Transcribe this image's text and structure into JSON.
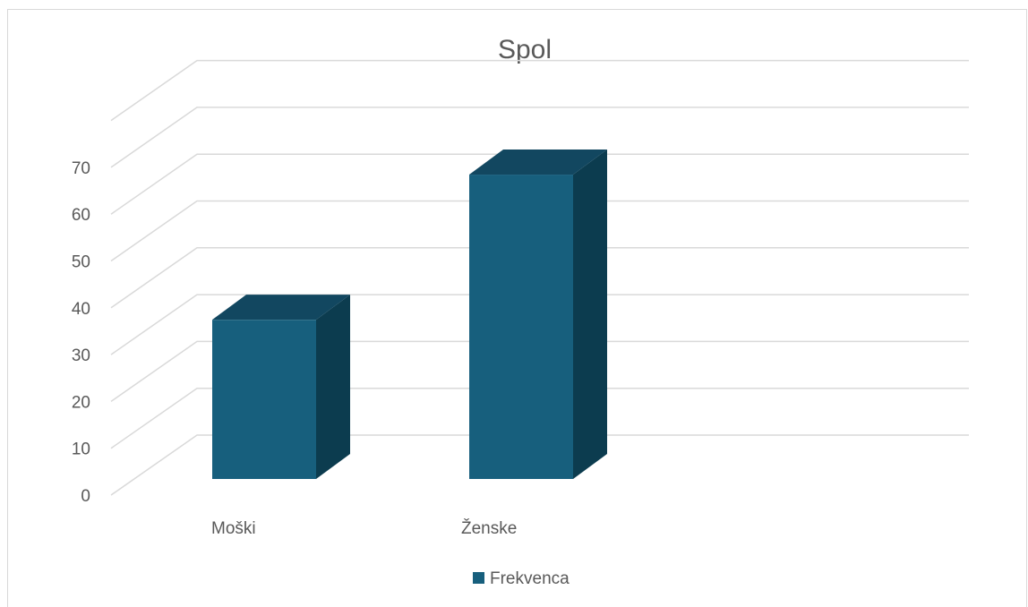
{
  "chart_data": {
    "type": "bar",
    "title": "Spol",
    "categories": [
      "Moški",
      "Ženske"
    ],
    "series": [
      {
        "name": "Frekvenca",
        "values": [
          34,
          65
        ],
        "color": "#175f7d"
      }
    ],
    "ylim": [
      0,
      70
    ],
    "yticks": [
      "0",
      "10",
      "20",
      "30",
      "40",
      "50",
      "60",
      "70"
    ],
    "grid": true,
    "legend": "bottom",
    "colors": {
      "front": "#175f7d",
      "top": "#124760",
      "side": "#0c3c4f",
      "grid": "#d9d9d9",
      "text": "#595959"
    }
  }
}
